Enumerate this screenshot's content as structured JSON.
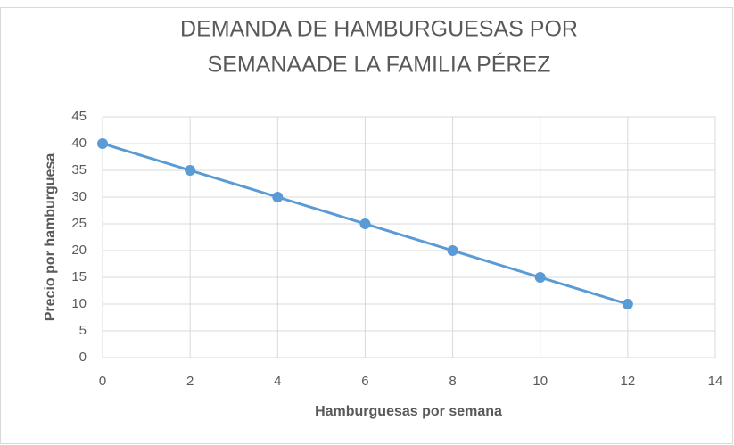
{
  "chart_data": {
    "type": "line",
    "title": [
      "DEMANDA DE HAMBURGUESAS POR",
      "SEMANAADE LA FAMILIA PÉREZ"
    ],
    "x_label": "Hamburguesas por semana",
    "y_label": "Precio por hamburguesa",
    "x": [
      0,
      2,
      4,
      6,
      8,
      10,
      12
    ],
    "series": [
      {
        "color": "#5b9bd5",
        "values": [
          40,
          35,
          30,
          25,
          20,
          15,
          10
        ]
      }
    ],
    "xlim": [
      0,
      14
    ],
    "xticks": [
      0,
      2,
      4,
      6,
      8,
      10,
      12,
      14
    ],
    "ylim": [
      0,
      45
    ],
    "yticks": [
      0,
      5,
      10,
      15,
      20,
      25,
      30,
      35,
      40,
      45
    ],
    "grid": true
  }
}
